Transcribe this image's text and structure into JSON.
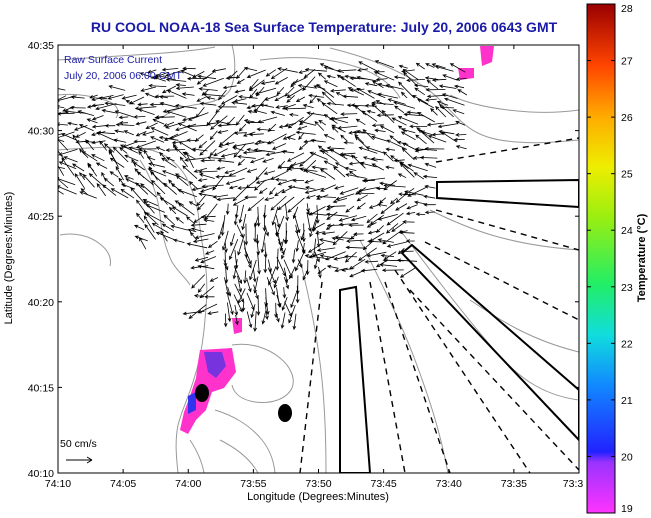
{
  "title": "RU COOL  NOAA-18  Sea Surface Temperature:  July 20, 2006 0643 GMT",
  "legend": {
    "line1": "Raw Surface Current",
    "line2": "July 20, 2006 06:00 GMT"
  },
  "scale_label": "50 cm/s",
  "axes": {
    "xlabel": "Longitude (Degrees:Minutes)",
    "ylabel": "Latitude (Degrees:Minutes)",
    "x_ticks": [
      "74:10",
      "74:05",
      "74:00",
      "73:55",
      "73:50",
      "73:45",
      "73:40",
      "73:35",
      "73:3"
    ],
    "y_ticks": [
      "40:35",
      "40:30",
      "40:25",
      "40:20",
      "40:15",
      "40:10"
    ]
  },
  "colorbar": {
    "label": "Temperature (°C)",
    "ticks": [
      "28",
      "27",
      "26",
      "25",
      "24",
      "23",
      "22",
      "21",
      "20",
      "19"
    ],
    "min": 19,
    "max": 28
  },
  "colors": {
    "title": "#1a1aa8",
    "frame": "#000000",
    "coast": "#999999",
    "arrow": "#000000",
    "sst_patch": "#ff33cc",
    "sst_cool": "#5533dd"
  }
}
